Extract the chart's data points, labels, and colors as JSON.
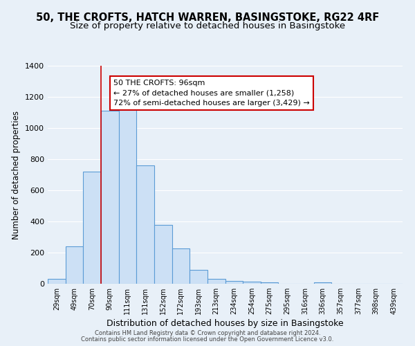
{
  "title": "50, THE CROFTS, HATCH WARREN, BASINGSTOKE, RG22 4RF",
  "subtitle": "Size of property relative to detached houses in Basingstoke",
  "xlabel": "Distribution of detached houses by size in Basingstoke",
  "ylabel": "Number of detached properties",
  "bin_labels": [
    "29sqm",
    "49sqm",
    "70sqm",
    "90sqm",
    "111sqm",
    "131sqm",
    "152sqm",
    "172sqm",
    "193sqm",
    "213sqm",
    "234sqm",
    "254sqm",
    "275sqm",
    "295sqm",
    "316sqm",
    "336sqm",
    "357sqm",
    "377sqm",
    "398sqm",
    "439sqm"
  ],
  "bar_heights": [
    30,
    240,
    720,
    1110,
    1120,
    760,
    380,
    225,
    90,
    30,
    20,
    15,
    10,
    0,
    0,
    10,
    0,
    0,
    0,
    0
  ],
  "bar_color": "#cce0f5",
  "bar_edge_color": "#5b9bd5",
  "vline_x": 3.0,
  "vline_color": "#cc0000",
  "ylim": [
    0,
    1400
  ],
  "yticks": [
    0,
    200,
    400,
    600,
    800,
    1000,
    1200,
    1400
  ],
  "annotation_text": "50 THE CROFTS: 96sqm\n← 27% of detached houses are smaller (1,258)\n72% of semi-detached houses are larger (3,429) →",
  "annotation_box_color": "#ffffff",
  "annotation_box_edge": "#cc0000",
  "footer_line1": "Contains HM Land Registry data © Crown copyright and database right 2024.",
  "footer_line2": "Contains public sector information licensed under the Open Government Licence v3.0.",
  "background_color": "#e8f0f8",
  "plot_background": "#e8f0f8",
  "grid_color": "#ffffff",
  "title_fontsize": 10.5,
  "subtitle_fontsize": 9.5
}
